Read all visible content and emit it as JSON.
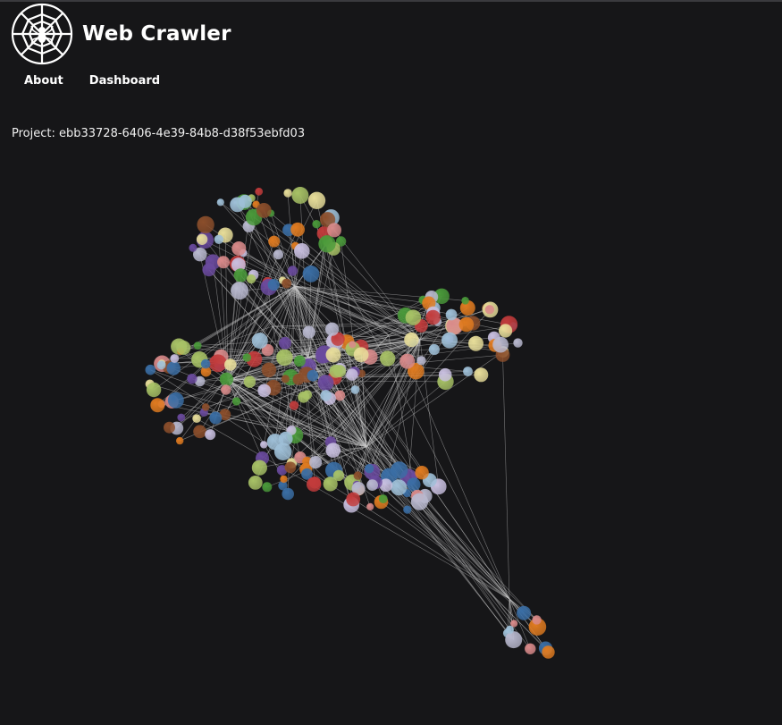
{
  "app": {
    "title": "Web Crawler",
    "logo_icon": "spiderweb-icon"
  },
  "nav": {
    "items": [
      {
        "label": "About"
      },
      {
        "label": "Dashboard"
      }
    ]
  },
  "project": {
    "label": "Project: ebb33728-6406-4e39-84b8-d38f53ebfd03"
  },
  "graph": {
    "background": "#161618",
    "edge_color": "#c8c8c8",
    "node_palette": [
      "#3a6ea5",
      "#e07b20",
      "#4a9a3a",
      "#c23b3b",
      "#6a4a9e",
      "#8b4e2b",
      "#d98a8a",
      "#b9b9cf",
      "#a8c266",
      "#e8de9a",
      "#9fc0d8",
      "#c9c0e0"
    ]
  }
}
